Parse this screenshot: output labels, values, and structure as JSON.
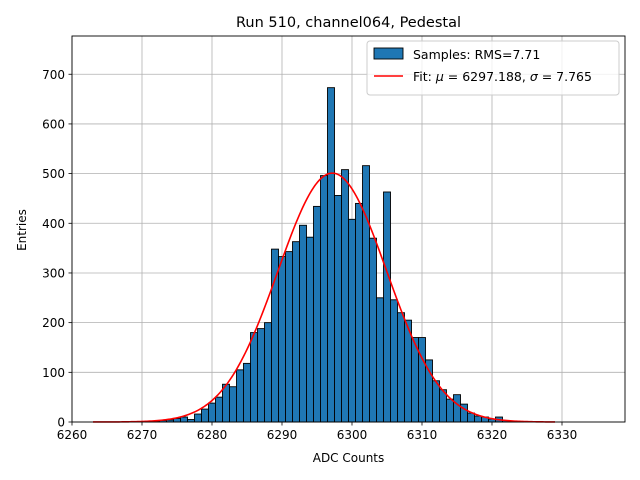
{
  "chart_data": {
    "type": "bar",
    "title": "Run 510, channel064, Pedestal",
    "xlabel": "ADC Counts",
    "ylabel": "Entries",
    "xlim": [
      6260,
      6339
    ],
    "ylim": [
      0,
      777
    ],
    "xticks": [
      "6260",
      "6270",
      "6280",
      "6290",
      "6300",
      "6310",
      "6320",
      "6330"
    ],
    "yticks": [
      "0",
      "100",
      "200",
      "300",
      "400",
      "500",
      "600",
      "700"
    ],
    "grid": true,
    "legend_position": "top-right",
    "legend": [
      {
        "label": "Samples: RMS=7.71",
        "kind": "patch"
      },
      {
        "label_prefix": "Fit: ",
        "mu_symbol": "μ",
        "mu_text": " = 6297.188, ",
        "sigma_symbol": "σ",
        "sigma_text": " = 7.765",
        "kind": "line"
      }
    ],
    "colors": {
      "bars": "#1f77b4",
      "bar_edge": "#000000",
      "fit": "#ff0000"
    },
    "histogram": {
      "bin_width": 1,
      "bins": [
        {
          "x": 6271,
          "count": 1
        },
        {
          "x": 6272,
          "count": 2
        },
        {
          "x": 6273,
          "count": 3
        },
        {
          "x": 6274,
          "count": 4
        },
        {
          "x": 6275,
          "count": 7
        },
        {
          "x": 6276,
          "count": 10
        },
        {
          "x": 6277,
          "count": 5
        },
        {
          "x": 6278,
          "count": 16
        },
        {
          "x": 6279,
          "count": 26
        },
        {
          "x": 6280,
          "count": 38
        },
        {
          "x": 6281,
          "count": 50
        },
        {
          "x": 6282,
          "count": 76
        },
        {
          "x": 6283,
          "count": 71
        },
        {
          "x": 6284,
          "count": 105
        },
        {
          "x": 6285,
          "count": 118
        },
        {
          "x": 6286,
          "count": 180
        },
        {
          "x": 6287,
          "count": 188
        },
        {
          "x": 6288,
          "count": 200
        },
        {
          "x": 6289,
          "count": 348
        },
        {
          "x": 6290,
          "count": 333
        },
        {
          "x": 6291,
          "count": 343
        },
        {
          "x": 6292,
          "count": 363
        },
        {
          "x": 6293,
          "count": 396
        },
        {
          "x": 6294,
          "count": 372
        },
        {
          "x": 6295,
          "count": 434
        },
        {
          "x": 6296,
          "count": 496
        },
        {
          "x": 6297,
          "count": 673
        },
        {
          "x": 6298,
          "count": 456
        },
        {
          "x": 6299,
          "count": 508
        },
        {
          "x": 6300,
          "count": 408
        },
        {
          "x": 6301,
          "count": 440
        },
        {
          "x": 6302,
          "count": 516
        },
        {
          "x": 6303,
          "count": 370
        },
        {
          "x": 6304,
          "count": 250
        },
        {
          "x": 6305,
          "count": 463
        },
        {
          "x": 6306,
          "count": 246
        },
        {
          "x": 6307,
          "count": 220
        },
        {
          "x": 6308,
          "count": 205
        },
        {
          "x": 6309,
          "count": 170
        },
        {
          "x": 6310,
          "count": 170
        },
        {
          "x": 6311,
          "count": 125
        },
        {
          "x": 6312,
          "count": 83
        },
        {
          "x": 6313,
          "count": 65
        },
        {
          "x": 6314,
          "count": 46
        },
        {
          "x": 6315,
          "count": 55
        },
        {
          "x": 6316,
          "count": 36
        },
        {
          "x": 6317,
          "count": 18
        },
        {
          "x": 6318,
          "count": 12
        },
        {
          "x": 6319,
          "count": 10
        },
        {
          "x": 6320,
          "count": 6
        },
        {
          "x": 6321,
          "count": 10
        },
        {
          "x": 6322,
          "count": 3
        },
        {
          "x": 6323,
          "count": 2
        },
        {
          "x": 6324,
          "count": 1
        }
      ]
    },
    "fit": {
      "type": "gaussian",
      "mu": 6297.188,
      "sigma": 7.765,
      "amplitude": 501,
      "x_range": [
        6263,
        6329
      ]
    }
  }
}
